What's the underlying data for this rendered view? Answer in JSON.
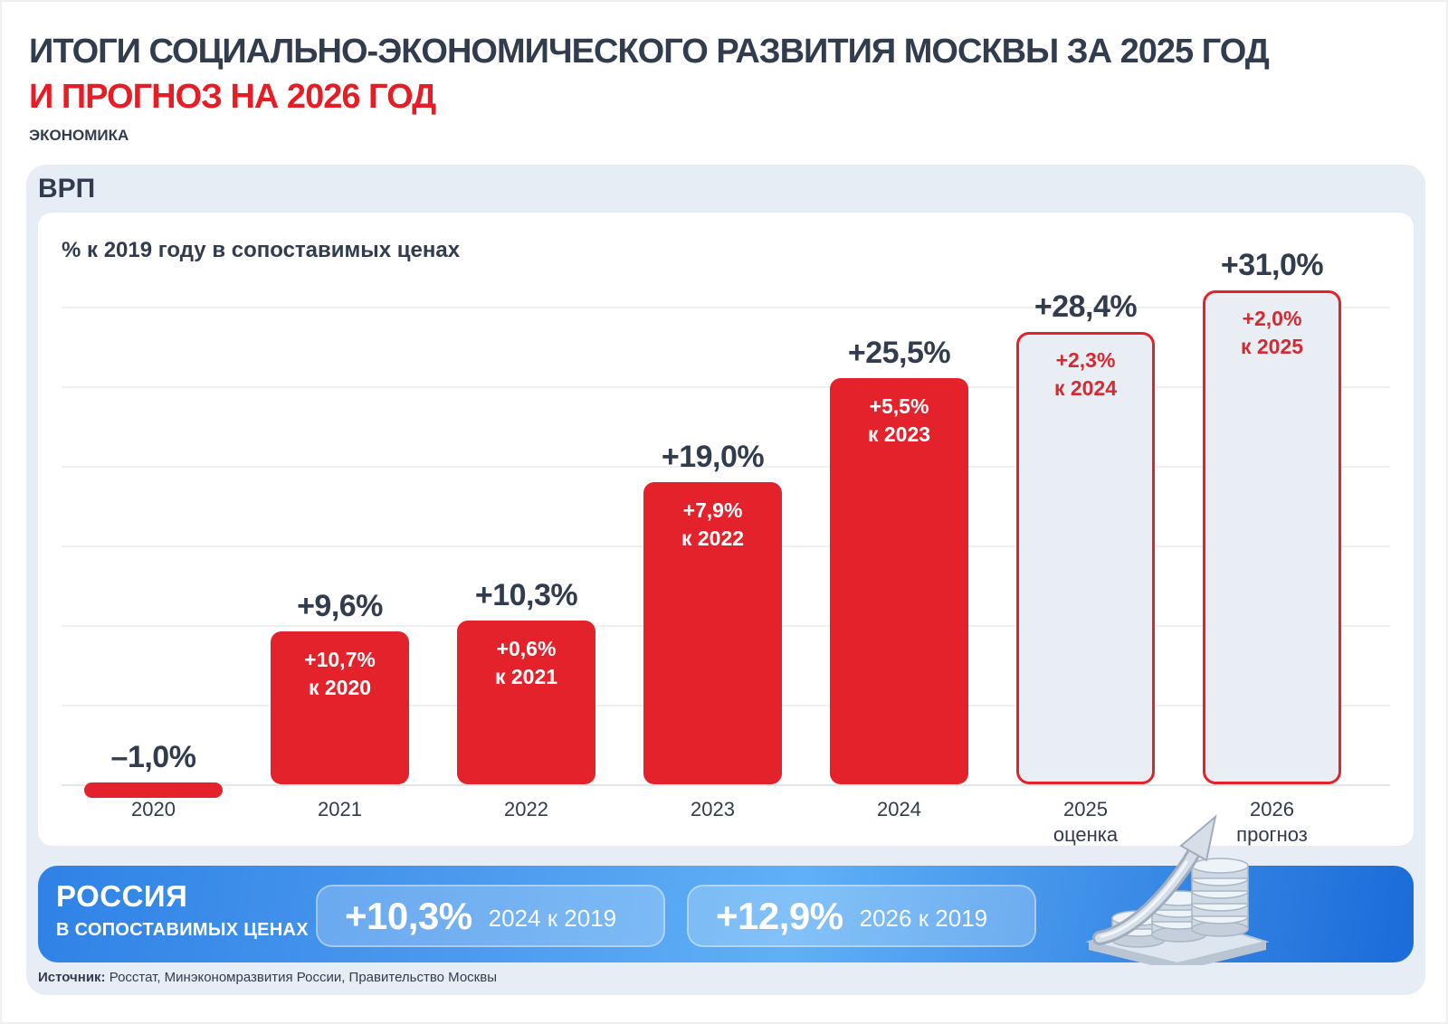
{
  "header": {
    "title_line1": "ИТОГИ СОЦИАЛЬНО-ЭКОНОМИЧЕСКОГО РАЗВИТИЯ МОСКВЫ ЗА 2025 ГОД",
    "title_line2": "И ПРОГНОЗ НА 2026 ГОД",
    "category": "ЭКОНОМИКА"
  },
  "panel": {
    "title": "ВРП"
  },
  "chart_data": {
    "type": "bar",
    "subtitle": "% к 2019 году в сопоставимых ценах",
    "ylabel": "% к 2019 году",
    "ylim": [
      -2,
      33
    ],
    "gridline_step_pct": 5,
    "grid": "horizontal, light gray, baseline at 0",
    "categories": [
      "2020",
      "2021",
      "2022",
      "2023",
      "2024",
      "2025 оценка",
      "2026 прогноз"
    ],
    "values": [
      -1.0,
      9.6,
      10.3,
      19.0,
      25.5,
      28.4,
      31.0
    ],
    "bars": [
      {
        "year": "2020",
        "note": "",
        "value_pct": -1.0,
        "label": "–1,0%",
        "delta_line1": "",
        "delta_line2": "",
        "kind": "negative"
      },
      {
        "year": "2021",
        "note": "",
        "value_pct": 9.6,
        "label": "+9,6%",
        "delta_line1": "+10,7%",
        "delta_line2": "к 2020",
        "kind": "actual"
      },
      {
        "year": "2022",
        "note": "",
        "value_pct": 10.3,
        "label": "+10,3%",
        "delta_line1": "+0,6%",
        "delta_line2": "к 2021",
        "kind": "actual"
      },
      {
        "year": "2023",
        "note": "",
        "value_pct": 19.0,
        "label": "+19,0%",
        "delta_line1": "+7,9%",
        "delta_line2": "к 2022",
        "kind": "actual"
      },
      {
        "year": "2024",
        "note": "",
        "value_pct": 25.5,
        "label": "+25,5%",
        "delta_line1": "+5,5%",
        "delta_line2": "к 2023",
        "kind": "actual"
      },
      {
        "year": "2025",
        "note": "оценка",
        "value_pct": 28.4,
        "label": "+28,4%",
        "delta_line1": "+2,3%",
        "delta_line2": "к 2024",
        "kind": "forecast"
      },
      {
        "year": "2026",
        "note": "прогноз",
        "value_pct": 31.0,
        "label": "+31,0%",
        "delta_line1": "+2,0%",
        "delta_line2": "к 2025",
        "kind": "forecast"
      }
    ]
  },
  "russia_banner": {
    "title": "РОССИЯ",
    "subtitle": "В СОПОСТАВИМЫХ ЦЕНАХ",
    "pills": [
      {
        "value": "+10,3%",
        "caption": "2024 к 2019"
      },
      {
        "value": "+12,9%",
        "caption": "2026 к 2019"
      }
    ]
  },
  "source": {
    "label": "Источник:",
    "text": " Росстат, Минэкономразвития России, Правительство Москвы"
  },
  "icons": {
    "bottom_right": "coins-growth-arrow-icon"
  },
  "colors": {
    "bar_red": "#e3222b",
    "forecast_fill": "#e9eef4",
    "forecast_border": "#e3222b",
    "delta_red_text": "#d42a31",
    "navy_text": "#313d4e",
    "title_red": "#e71d25",
    "panel_bg": "#e7edf4",
    "card_bg": "#ffffff",
    "banner_blue_left": "#2f82e6",
    "banner_blue_right": "#1b6bd9"
  }
}
